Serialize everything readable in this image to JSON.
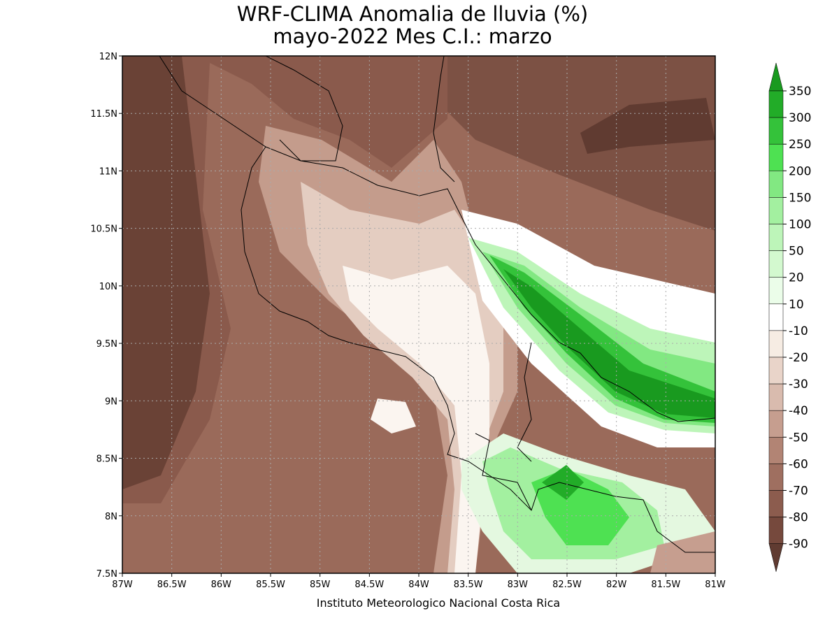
{
  "map": {
    "title": [
      "WRF-CLIMA Anomalia de lluvia (%)",
      "mayo-2022 Mes C.I.: marzo"
    ],
    "footer": "Instituto Meteorologico Nacional Costa Rica",
    "lon_ticks": [
      {
        "value": -87,
        "label": "87W"
      },
      {
        "value": -86.5,
        "label": "86.5W"
      },
      {
        "value": -86,
        "label": "86W"
      },
      {
        "value": -85.5,
        "label": "85.5W"
      },
      {
        "value": -85,
        "label": "85W"
      },
      {
        "value": -84.5,
        "label": "84.5W"
      },
      {
        "value": -84,
        "label": "84W"
      },
      {
        "value": -83.5,
        "label": "83.5W"
      },
      {
        "value": -83,
        "label": "83W"
      },
      {
        "value": -82.5,
        "label": "82.5W"
      },
      {
        "value": -82,
        "label": "82W"
      },
      {
        "value": -81.5,
        "label": "81.5W"
      },
      {
        "value": -81,
        "label": "81W"
      }
    ],
    "lat_ticks": [
      {
        "value": 12,
        "label": "12N"
      },
      {
        "value": 11.5,
        "label": "11.5N"
      },
      {
        "value": 11,
        "label": "11N"
      },
      {
        "value": 10.5,
        "label": "10.5N"
      },
      {
        "value": 10,
        "label": "10N"
      },
      {
        "value": 9.5,
        "label": "9.5N"
      },
      {
        "value": 9,
        "label": "9N"
      },
      {
        "value": 8.5,
        "label": "8.5N"
      },
      {
        "value": 8,
        "label": "8N"
      },
      {
        "value": 7.5,
        "label": "7.5N"
      }
    ],
    "colorbar": {
      "levels": [
        350,
        300,
        250,
        200,
        150,
        100,
        50,
        20,
        10,
        -10,
        -20,
        -30,
        -40,
        -50,
        -60,
        -70,
        -80,
        -90
      ],
      "colors": [
        "#199a1f",
        "#22ac28",
        "#34c23a",
        "#4ee152",
        "#82e882",
        "#a3f0a0",
        "#bdf5b9",
        "#d3f9cf",
        "#ebfde9",
        "#ffffff",
        "#f6ece3",
        "#e9d4c9",
        "#d9bbae",
        "#c69e8f",
        "#b28474",
        "#9f6f60",
        "#8c5c4e",
        "#76493d",
        "#603b31"
      ]
    }
  }
}
